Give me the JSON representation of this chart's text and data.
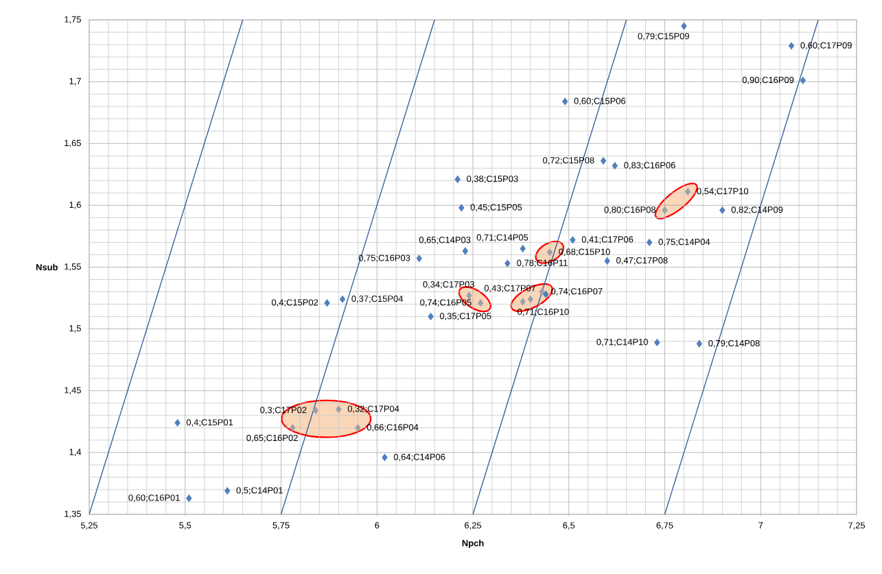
{
  "chart_data": {
    "type": "scatter",
    "xlabel": "Npch",
    "ylabel": "Nsub",
    "xlim": [
      5.25,
      7.25
    ],
    "ylim": [
      1.35,
      1.75
    ],
    "xticks": [
      {
        "value": 5.25,
        "label": "5,25"
      },
      {
        "value": 5.5,
        "label": "5,5"
      },
      {
        "value": 5.75,
        "label": "5,75"
      },
      {
        "value": 6,
        "label": "6"
      },
      {
        "value": 6.25,
        "label": "6,25"
      },
      {
        "value": 6.5,
        "label": "6,5"
      },
      {
        "value": 6.75,
        "label": "6,75"
      },
      {
        "value": 7,
        "label": "7"
      },
      {
        "value": 7.25,
        "label": "7,25"
      }
    ],
    "yticks": [
      {
        "value": 1.35,
        "label": "1,35"
      },
      {
        "value": 1.4,
        "label": "1,4"
      },
      {
        "value": 1.45,
        "label": "1,45"
      },
      {
        "value": 1.5,
        "label": "1,5"
      },
      {
        "value": 1.55,
        "label": "1,55"
      },
      {
        "value": 1.6,
        "label": "1,6"
      },
      {
        "value": 1.65,
        "label": "1,65"
      },
      {
        "value": 1.7,
        "label": "1,7"
      },
      {
        "value": 1.75,
        "label": "1,75"
      }
    ],
    "grid": true,
    "marker": "diamond",
    "series": [
      {
        "color": "#4f81bd",
        "x": [
          6.8,
          7.08,
          7.11,
          6.49,
          6.59,
          6.62,
          6.21,
          6.22,
          6.9,
          6.51,
          6.38,
          6.23,
          6.11,
          6.34,
          6.71,
          6.6,
          6.14,
          6.44,
          5.91,
          5.87,
          5.48,
          6.02,
          5.61,
          5.51,
          6.73,
          6.84
        ],
        "values": [
          1.745,
          1.729,
          1.701,
          1.684,
          1.636,
          1.632,
          1.621,
          1.598,
          1.596,
          1.572,
          1.565,
          1.563,
          1.557,
          1.553,
          1.57,
          1.555,
          1.51,
          1.528,
          1.524,
          1.521,
          1.424,
          1.396,
          1.369,
          1.363,
          1.489,
          1.488
        ]
      },
      {
        "color": "#a0a0a8",
        "x": [
          6.81,
          6.75
        ],
        "values": [
          1.611,
          1.596
        ]
      },
      {
        "color": "#a0a0a8",
        "x": [
          6.45
        ],
        "values": [
          1.562
        ]
      },
      {
        "color": "#a0a0a8",
        "x": [
          6.24,
          6.27
        ],
        "values": [
          1.527,
          1.521
        ]
      },
      {
        "color": "#a0a0a8",
        "x": [
          6.38,
          6.4,
          6.43
        ],
        "values": [
          1.522,
          1.524,
          1.53
        ]
      },
      {
        "color": "#a0a0a8",
        "x": [
          5.78,
          5.84,
          5.9,
          5.95
        ],
        "values": [
          1.42,
          1.434,
          1.435,
          1.42
        ]
      },
      {
        "type": "line",
        "marker": "none",
        "color": "#2e5a94",
        "x": [
          5.25,
          5.65
        ],
        "values": [
          1.35,
          1.75
        ]
      },
      {
        "type": "line",
        "marker": "none",
        "color": "#2e5a94",
        "x": [
          5.75,
          6.15
        ],
        "values": [
          1.35,
          1.75
        ]
      },
      {
        "type": "line",
        "marker": "none",
        "color": "#2e5a94",
        "x": [
          6.25,
          6.65
        ],
        "values": [
          1.35,
          1.75
        ]
      },
      {
        "type": "line",
        "marker": "none",
        "color": "#2e5a94",
        "x": [
          6.75,
          7.15
        ],
        "values": [
          1.35,
          1.75
        ]
      }
    ],
    "annotations": [
      {
        "text": "0,79;C15P09",
        "x": 6.8,
        "y": 1.745
      },
      {
        "text": "0,60;C17P09",
        "x": 7.08,
        "y": 1.729
      },
      {
        "text": "0,90;C16P09",
        "x": 7.11,
        "y": 1.701
      },
      {
        "text": "0,60;C15P06",
        "x": 6.49,
        "y": 1.684
      },
      {
        "text": "0,72;C15P08",
        "x": 6.59,
        "y": 1.636
      },
      {
        "text": "0,83;C16P06",
        "x": 6.62,
        "y": 1.632
      },
      {
        "text": "0,38;C15P03",
        "x": 6.21,
        "y": 1.621
      },
      {
        "text": "0,45;C15P05",
        "x": 6.22,
        "y": 1.598
      },
      {
        "text": "0,82;C14P09",
        "x": 6.9,
        "y": 1.596
      },
      {
        "text": "0,41;C17P06",
        "x": 6.51,
        "y": 1.572
      },
      {
        "text": "0,71;C14P05",
        "x": 6.38,
        "y": 1.565
      },
      {
        "text": "0,65;C14P03",
        "x": 6.23,
        "y": 1.563
      },
      {
        "text": "0,75;C16P03",
        "x": 6.11,
        "y": 1.557
      },
      {
        "text": "0,78;C16P11",
        "x": 6.34,
        "y": 1.553
      },
      {
        "text": "0,75;C14P04",
        "x": 6.71,
        "y": 1.57
      },
      {
        "text": "0,47;C17P08",
        "x": 6.6,
        "y": 1.555
      },
      {
        "text": "0,35;C17P05",
        "x": 6.14,
        "y": 1.51
      },
      {
        "text": "0,37;C15P04",
        "x": 5.91,
        "y": 1.524
      },
      {
        "text": "0,4;C15P02",
        "x": 5.87,
        "y": 1.521
      },
      {
        "text": "0,4;C15P01",
        "x": 5.48,
        "y": 1.424
      },
      {
        "text": "0,64;C14P06",
        "x": 6.02,
        "y": 1.396
      },
      {
        "text": "0,5;C14P01",
        "x": 5.61,
        "y": 1.369
      },
      {
        "text": "0,60;C16P01",
        "x": 5.51,
        "y": 1.363
      },
      {
        "text": "0,71;C14P10",
        "x": 6.73,
        "y": 1.489
      },
      {
        "text": "0,79;C14P08",
        "x": 6.84,
        "y": 1.488
      },
      {
        "text": "0,54;C17P10",
        "x": 6.81,
        "y": 1.611
      },
      {
        "text": "0,80;C16P08",
        "x": 6.75,
        "y": 1.596
      },
      {
        "text": "0,68;C15P10",
        "x": 6.45,
        "y": 1.562
      },
      {
        "text": "0,34;C17P03",
        "x": 6.24,
        "y": 1.527
      },
      {
        "text": "0,74;C16P05",
        "x": 6.27,
        "y": 1.521
      },
      {
        "text": "0,71;C16P10",
        "x": 6.38,
        "y": 1.522
      },
      {
        "text": "0,43;C17P07",
        "x": 6.4,
        "y": 1.524
      },
      {
        "text": "0,74;C16P07",
        "x": 6.43,
        "y": 1.53
      },
      {
        "text": "0,65;C16P02",
        "x": 5.78,
        "y": 1.42
      },
      {
        "text": "0,3;C17P02",
        "x": 5.84,
        "y": 1.434
      },
      {
        "text": "0,32;C17P04",
        "x": 5.9,
        "y": 1.435
      },
      {
        "text": "0,66;C16P04",
        "x": 5.95,
        "y": 1.42
      }
    ]
  }
}
